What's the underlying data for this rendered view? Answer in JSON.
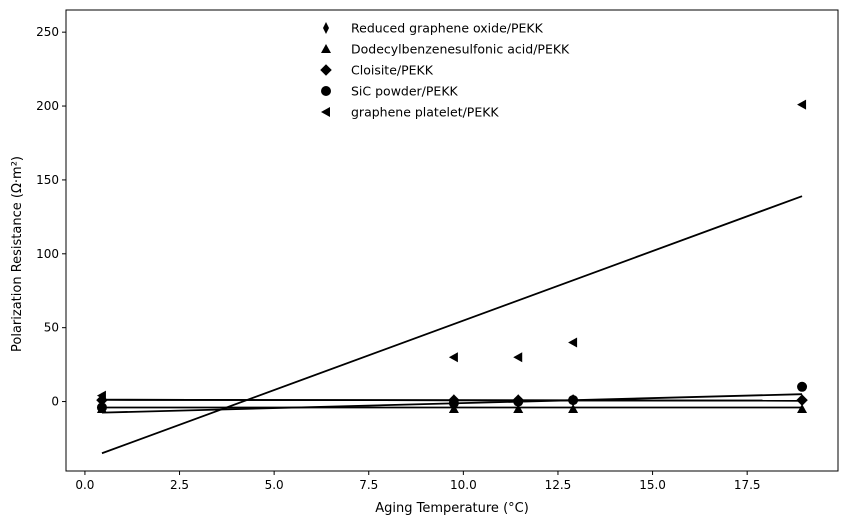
{
  "chart_data": {
    "type": "scatter",
    "title": "",
    "xlabel": "Aging Temperature (°C)",
    "ylabel": "Polarization Resistance (Ω·m²)",
    "xlim": [
      -0.5,
      19.9
    ],
    "ylim": [
      -47,
      265
    ],
    "xticks": [
      0.0,
      2.5,
      5.0,
      7.5,
      10.0,
      12.5,
      15.0,
      17.5
    ],
    "xtick_labels": [
      "0.0",
      "2.5",
      "5.0",
      "7.5",
      "10.0",
      "12.5",
      "15.0",
      "17.5"
    ],
    "yticks": [
      0,
      50,
      100,
      150,
      200,
      250
    ],
    "ytick_labels": [
      "0",
      "50",
      "100",
      "150",
      "200",
      "250"
    ],
    "grid": false,
    "legend_position": "top-center",
    "series": [
      {
        "name": "Reduced graphene oxide/PEKK",
        "marker": "thin-diamond",
        "x": [
          0.45,
          9.75,
          11.45,
          12.9,
          18.95
        ],
        "y": [
          2,
          1,
          1,
          1,
          1
        ],
        "fit": [
          1.2,
          0.6
        ]
      },
      {
        "name": "Dodecylbenzenesulfonic acid/PEKK",
        "marker": "triangle-up",
        "x": [
          0.45,
          9.75,
          11.45,
          12.9,
          18.95
        ],
        "y": [
          -5,
          -5,
          -5,
          -5,
          -5
        ],
        "fit": [
          -4.0,
          -4.0
        ]
      },
      {
        "name": "Cloisite/PEKK",
        "marker": "diamond",
        "x": [
          0.45,
          9.75,
          11.45,
          12.9,
          18.95
        ],
        "y": [
          1,
          1,
          1,
          1,
          1
        ],
        "fit": [
          1.2,
          0.6
        ]
      },
      {
        "name": "SiC powder/PEKK",
        "marker": "circle",
        "x": [
          0.45,
          9.75,
          11.45,
          12.9,
          18.95
        ],
        "y": [
          -4,
          -1,
          0,
          1,
          10
        ],
        "fit": [
          -7.5,
          5.0
        ]
      },
      {
        "name": "graphene platelet/PEKK",
        "marker": "triangle-left",
        "x": [
          0.45,
          9.75,
          11.45,
          12.9,
          18.95
        ],
        "y": [
          4,
          30,
          30,
          40,
          201
        ],
        "fit": [
          -35,
          139
        ]
      }
    ]
  }
}
